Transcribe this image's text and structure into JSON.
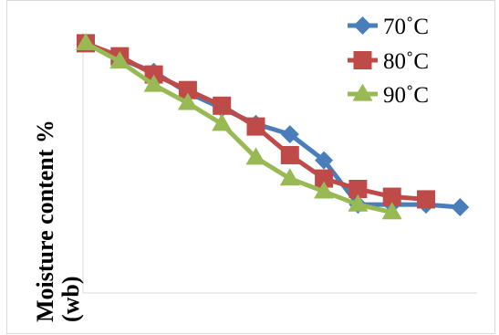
{
  "chart_data": {
    "type": "line",
    "title": "",
    "xlabel": "",
    "ylabel_lines": [
      "Moisture content %",
      "(wb)"
    ],
    "x_index": [
      1,
      2,
      3,
      4,
      5,
      6,
      7,
      8,
      9,
      10,
      11,
      12
    ],
    "ylim": [
      0,
      1
    ],
    "grid": false,
    "legend_position": "top-right",
    "series": [
      {
        "name": "70˚C",
        "color": "#4a7ebb",
        "marker": "diamond",
        "values": [
          0.96,
          0.9,
          0.85,
          0.77,
          0.71,
          0.65,
          0.61,
          0.51,
          0.34,
          0.34,
          0.34,
          0.33
        ]
      },
      {
        "name": "80˚C",
        "color": "#be4b48",
        "marker": "square",
        "values": [
          0.96,
          0.91,
          0.84,
          0.78,
          0.72,
          0.64,
          0.53,
          0.44,
          0.4,
          0.37,
          0.36
        ]
      },
      {
        "name": "90˚C",
        "color": "#98b954",
        "marker": "triangle",
        "values": [
          0.96,
          0.89,
          0.8,
          0.73,
          0.65,
          0.52,
          0.44,
          0.39,
          0.34,
          0.31
        ]
      }
    ]
  }
}
